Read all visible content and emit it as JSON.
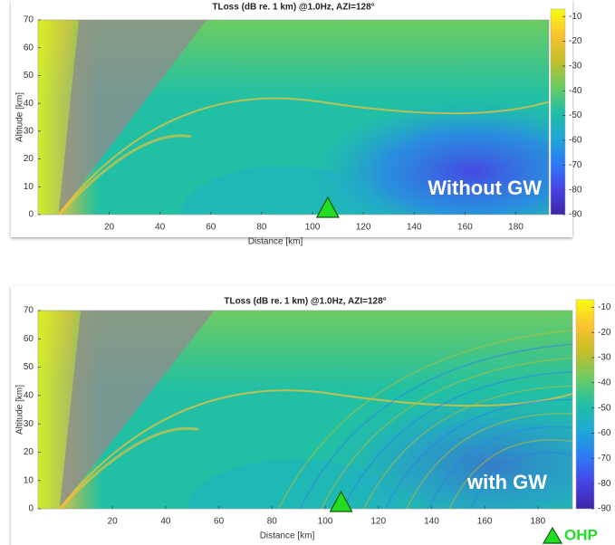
{
  "chart_data": [
    {
      "type": "heatmap",
      "title": "TLoss (dB re. 1 km) @1.0Hz, AZI=128°",
      "x_label": "Distance [km]",
      "y_label": "Altitude [km]",
      "xlim": [
        -8,
        193
      ],
      "xticks": [
        20,
        40,
        60,
        80,
        100,
        120,
        140,
        160,
        180
      ],
      "ylim": [
        0,
        70
      ],
      "yticks": [
        0,
        10,
        20,
        30,
        40,
        50,
        60,
        70
      ],
      "colorbar": {
        "clim": [
          -90,
          -7
        ],
        "ticks": [
          -10,
          -20,
          -30,
          -40,
          -50,
          -60,
          -70,
          -80,
          -90
        ],
        "colormap": [
          "#3e26a8",
          "#4743e6",
          "#2c7bf5",
          "#1fa8d6",
          "#21c0a4",
          "#6ccb62",
          "#c5be29",
          "#fbc232",
          "#f9fb0e"
        ]
      },
      "annotation": "Without GW",
      "marker_x": 106,
      "marker_color": "#22dd22"
    },
    {
      "type": "heatmap",
      "title": "TLoss (dB re. 1 km) @1.0Hz, AZI=128°",
      "x_label": "Distance [km]",
      "y_label": "Altitude [km]",
      "xlim": [
        -8,
        193
      ],
      "xticks": [
        20,
        40,
        60,
        80,
        100,
        120,
        140,
        160,
        180
      ],
      "ylim": [
        0,
        70
      ],
      "yticks": [
        0,
        10,
        20,
        30,
        40,
        50,
        60,
        70
      ],
      "colorbar": {
        "clim": [
          -90,
          -7
        ],
        "ticks": [
          -10,
          -20,
          -30,
          -40,
          -50,
          -60,
          -70,
          -80,
          -90
        ],
        "colormap": [
          "#3e26a8",
          "#4743e6",
          "#2c7bf5",
          "#1fa8d6",
          "#21c0a4",
          "#6ccb62",
          "#c5be29",
          "#fbc232",
          "#f9fb0e"
        ]
      },
      "annotation": "with GW",
      "marker_x": 106,
      "marker_color": "#22dd22",
      "marker_label": "OHP"
    }
  ]
}
